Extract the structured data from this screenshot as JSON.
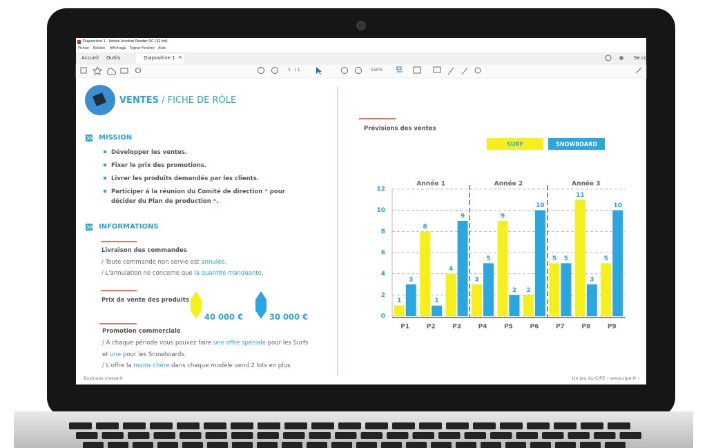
{
  "window": {
    "title": "Diapositive 1 - Adobe Acrobat Reader DC (32-bit)",
    "menu": [
      "Fichier",
      "Edition",
      "Affichage",
      "Signer",
      "Fenêtre",
      "Aide"
    ],
    "tabs": [
      "Accueil",
      "Outils",
      "Diapositive 1"
    ],
    "tab_close": "×",
    "sign_in": "Se co",
    "page": "1",
    "page_total": "/ 1",
    "zoom": "150%"
  },
  "slide": {
    "title": "VENTES",
    "title_sep": " / ",
    "subtitle": "FICHE DE RÔLE",
    "mission": {
      "heading": "MISSION",
      "items": [
        [
          "Développer les ventes."
        ],
        [
          "Fixer le prix des promotions."
        ],
        [
          "Livrer les produits demandés par les clients."
        ],
        [
          "Participer à la réunion du Comité de direction ",
          "*",
          " pour décider du Plan de production ",
          "*",
          "."
        ]
      ]
    },
    "info": {
      "heading": "INFORMATIONS",
      "marker": "/",
      "sections": [
        {
          "title": "Livraison des commandes",
          "lines": [
            [
              "Toute commande non servie est ",
              "annulée",
              "."
            ],
            [
              "L'annulation ne concerne que ",
              "la quantité manquante",
              "."
            ]
          ]
        },
        {
          "title": "Prix de vente des produits",
          "prices": [
            "40 000 €",
            "30 000 €"
          ]
        },
        {
          "title": "Promotion commerciale",
          "lines": [
            [
              "À chaque période vous pouvez faire ",
              "une offre spéciale",
              " pour les Surfs et ",
              "une",
              " pour les Snowboards."
            ],
            [
              "L'offre la ",
              "moins chère",
              " dans chaque modèle vend 2 lots en plus."
            ]
          ]
        }
      ]
    },
    "footer_left": "Business classe®",
    "footer_right": "Un jeu du CIPE – www.cipe.fr –"
  },
  "chart_data": {
    "type": "bar",
    "title": "Prévisions des ventes",
    "group_labels": [
      "Année 1",
      "Année 2",
      "Année 3"
    ],
    "categories": [
      "P1",
      "P2",
      "P3",
      "P4",
      "P5",
      "P6",
      "P7",
      "P8",
      "P9"
    ],
    "series": [
      {
        "name": "SURF",
        "color": "#f5ef1c",
        "values": [
          1,
          8,
          4,
          3,
          9,
          2,
          5,
          11,
          5
        ]
      },
      {
        "name": "SNOWBOARD",
        "color": "#2ba6de",
        "values": [
          3,
          1,
          9,
          5,
          2,
          10,
          5,
          3,
          10
        ]
      }
    ],
    "ylim": [
      0,
      12
    ],
    "yticks": [
      0,
      2,
      4,
      6,
      8,
      10,
      12
    ],
    "grid": true
  }
}
